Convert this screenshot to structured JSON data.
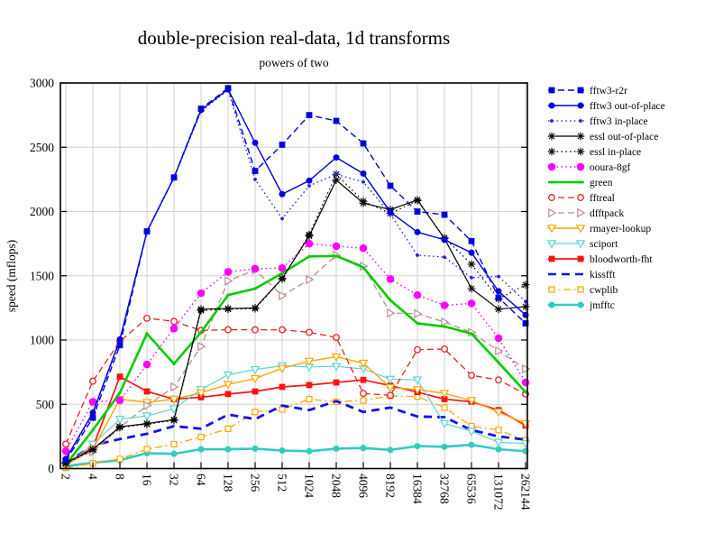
{
  "chart_data": {
    "type": "line",
    "title": "double-precision real-data, 1d transforms",
    "subtitle": "powers of two",
    "xlabel": "",
    "ylabel": "speed (mflops)",
    "x_scale": "log2",
    "categories": [
      "2",
      "4",
      "8",
      "16",
      "32",
      "64",
      "128",
      "256",
      "512",
      "1024",
      "2048",
      "4096",
      "8192",
      "16384",
      "32768",
      "65536",
      "131072",
      "262144"
    ],
    "ylim": [
      0,
      3000
    ],
    "y_ticks": [
      0,
      500,
      1000,
      1500,
      2000,
      2500,
      3000
    ],
    "grid": true,
    "legend_position": "right-outside",
    "series": [
      {
        "name": "fftw3-r2r",
        "color": "#0000dd",
        "line": "dashed",
        "marker": "square",
        "width": 1.4,
        "values": [
          60,
          395,
          960,
          1845,
          2265,
          2800,
          2960,
          2315,
          2520,
          2750,
          2705,
          2530,
          2200,
          2000,
          1975,
          1770,
          1330,
          1130
        ]
      },
      {
        "name": "fftw3 out-of-place",
        "color": "#0000dd",
        "line": "solid",
        "marker": "circle",
        "width": 1.4,
        "values": [
          75,
          435,
          1005,
          1845,
          2265,
          2790,
          2950,
          2535,
          2135,
          2240,
          2420,
          2295,
          1995,
          1840,
          1780,
          1680,
          1380,
          1195
        ]
      },
      {
        "name": "fftw3 in-place",
        "color": "#2020ee",
        "line": "dotted",
        "marker": "dot",
        "width": 1.3,
        "values": [
          70,
          420,
          990,
          1840,
          2260,
          2780,
          2945,
          2250,
          1945,
          2200,
          2290,
          2230,
          1980,
          1660,
          1645,
          1485,
          1495,
          1300
        ]
      },
      {
        "name": "essl out-of-place",
        "color": "#000000",
        "line": "solid",
        "marker": "asterisk",
        "width": 1.2,
        "values": [
          45,
          150,
          325,
          350,
          380,
          1240,
          1245,
          1250,
          1480,
          1810,
          2245,
          2065,
          2015,
          2090,
          1790,
          1400,
          1240,
          1260
        ]
      },
      {
        "name": "essl in-place",
        "color": "#000000",
        "line": "dotted",
        "marker": "asterisk",
        "width": 1.2,
        "values": [
          40,
          145,
          320,
          345,
          375,
          1230,
          1240,
          1245,
          1475,
          1820,
          2290,
          2080,
          1985,
          2085,
          1795,
          1590,
          1320,
          1430
        ]
      },
      {
        "name": "ooura-8gf",
        "color": "#ff00ff",
        "line": "dotted",
        "marker": "circle-big",
        "width": 1.4,
        "values": [
          135,
          520,
          530,
          810,
          1090,
          1365,
          1530,
          1555,
          1560,
          1750,
          1730,
          1715,
          1475,
          1350,
          1270,
          1285,
          1015,
          670
        ]
      },
      {
        "name": "green",
        "color": "#00cc00",
        "line": "solid",
        "marker": "dot-small",
        "width": 2.6,
        "values": [
          30,
          300,
          590,
          1050,
          815,
          1060,
          1350,
          1400,
          1520,
          1650,
          1655,
          1565,
          1310,
          1130,
          1105,
          1050,
          825,
          595
        ]
      },
      {
        "name": "fftreal",
        "color": "#e62020",
        "line": "dashed",
        "marker": "circle-open",
        "width": 1.3,
        "values": [
          190,
          680,
          990,
          1170,
          1145,
          1075,
          1080,
          1080,
          1080,
          1060,
          1020,
          585,
          570,
          925,
          930,
          725,
          690,
          580
        ]
      },
      {
        "name": "dfftpack",
        "color": "#bc8f8f",
        "line": "dashed",
        "marker": "tri-right-open",
        "width": 1.3,
        "values": [
          55,
          130,
          320,
          490,
          635,
          950,
          1460,
          1545,
          1345,
          1470,
          1660,
          1575,
          1210,
          1205,
          1140,
          1060,
          915,
          775
        ]
      },
      {
        "name": "rmayer-lookup",
        "color": "#ffa500",
        "line": "solid",
        "marker": "tri-down-open",
        "width": 1.4,
        "values": [
          25,
          150,
          540,
          515,
          540,
          590,
          655,
          700,
          780,
          835,
          870,
          820,
          630,
          615,
          585,
          530,
          440,
          350
        ]
      },
      {
        "name": "sciport",
        "color": "#5fd3cd",
        "line": "solid",
        "marker": "tri-down-open",
        "width": 1.2,
        "values": [
          20,
          190,
          385,
          410,
          465,
          615,
          730,
          770,
          800,
          790,
          795,
          775,
          695,
          690,
          350,
          290,
          205,
          195
        ]
      },
      {
        "name": "bloodworth-fht",
        "color": "#ff1111",
        "line": "solid",
        "marker": "square",
        "width": 1.7,
        "values": [
          35,
          165,
          715,
          600,
          540,
          555,
          580,
          600,
          635,
          650,
          670,
          690,
          645,
          595,
          540,
          520,
          455,
          335
        ]
      },
      {
        "name": "kissfft",
        "color": "#1111ee",
        "line": "dashed-thick",
        "marker": "none",
        "width": 2.8,
        "values": [
          40,
          180,
          230,
          270,
          330,
          310,
          420,
          385,
          490,
          455,
          525,
          440,
          475,
          405,
          400,
          300,
          250,
          225
        ]
      },
      {
        "name": "cwplib",
        "color": "#ffa500",
        "line": "dashdot",
        "marker": "square-open",
        "width": 1.3,
        "values": [
          5,
          40,
          75,
          150,
          190,
          245,
          310,
          440,
          460,
          540,
          520,
          530,
          565,
          560,
          475,
          330,
          300,
          220
        ]
      },
      {
        "name": "jmfftc",
        "color": "#2fccc4",
        "line": "solid",
        "marker": "circle",
        "width": 2.6,
        "values": [
          20,
          45,
          65,
          120,
          115,
          150,
          150,
          155,
          140,
          135,
          155,
          160,
          145,
          175,
          170,
          185,
          150,
          135
        ]
      }
    ]
  }
}
